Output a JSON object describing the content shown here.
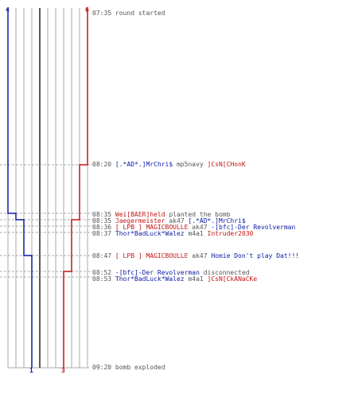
{
  "colors": {
    "blue": "#0b1aa3",
    "red": "#c41414",
    "grid": "#a9a9a9",
    "text": "#555555"
  },
  "scores": {
    "top_blue": "4",
    "top_red": "6",
    "bottom_blue": "1",
    "bottom_red": "3"
  },
  "events": [
    {
      "time": "07:35",
      "parts": [
        {
          "t": "round started",
          "c": "gray"
        }
      ]
    },
    {
      "time": "08:20",
      "parts": [
        {
          "t": "[.*AD*.]MrChri$",
          "c": "blue"
        },
        {
          "t": " mp5navy ",
          "c": "gray"
        },
        {
          "t": "]CsN[CHonK",
          "c": "red"
        }
      ]
    },
    {
      "time": "08:35",
      "parts": [
        {
          "t": "Wei[BAER]held",
          "c": "red"
        },
        {
          "t": " planted the bomb",
          "c": "gray"
        }
      ]
    },
    {
      "time": "08:35",
      "parts": [
        {
          "t": "Jaegermeister",
          "c": "red"
        },
        {
          "t": " ak47 ",
          "c": "gray"
        },
        {
          "t": "[.*AD*.]MrChri$",
          "c": "blue"
        }
      ]
    },
    {
      "time": "08:36",
      "parts": [
        {
          "t": "[ LPB ] MAGICBOULLE",
          "c": "red"
        },
        {
          "t": " ak47 ",
          "c": "gray"
        },
        {
          "t": "-[bfc]-Der Revolverman",
          "c": "blue"
        }
      ]
    },
    {
      "time": "08:37",
      "parts": [
        {
          "t": "Thor*BadLuck*Walez",
          "c": "blue"
        },
        {
          "t": " m4a1 ",
          "c": "gray"
        },
        {
          "t": "Intruder2030",
          "c": "red"
        }
      ]
    },
    {
      "time": "08:47",
      "parts": [
        {
          "t": "[ LPB ] MAGICBOULLE",
          "c": "red"
        },
        {
          "t": " ak47 ",
          "c": "gray"
        },
        {
          "t": "Homie Don't play Dat!!!",
          "c": "blue"
        }
      ]
    },
    {
      "time": "08:52",
      "parts": [
        {
          "t": "-[bfc]-Der Revolverman",
          "c": "blue"
        },
        {
          "t": " disconnected",
          "c": "gray"
        }
      ]
    },
    {
      "time": "08:53",
      "parts": [
        {
          "t": "Thor*BadLuck*Walez",
          "c": "blue"
        },
        {
          "t": " m4a1 ",
          "c": "gray"
        },
        {
          "t": "]CsN[CkANaCKe",
          "c": "red"
        }
      ]
    },
    {
      "time": "09:20",
      "parts": [
        {
          "t": "bomb exploded",
          "c": "gray"
        }
      ]
    }
  ]
}
